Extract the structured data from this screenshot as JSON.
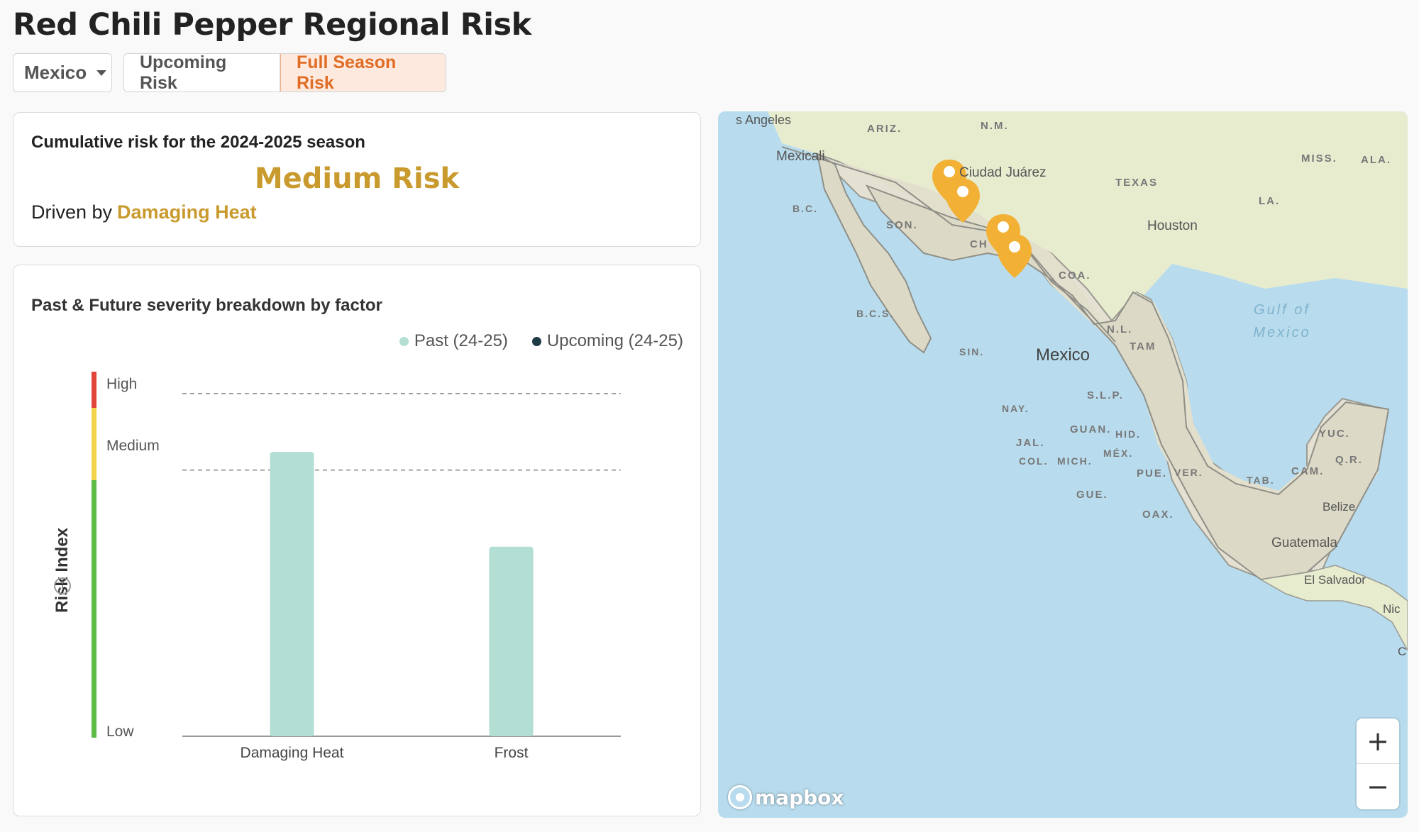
{
  "page": {
    "title": "Red Chili Pepper Regional Risk"
  },
  "controls": {
    "region": "Mexico",
    "tabs": [
      "Upcoming Risk",
      "Full Season Risk"
    ],
    "active_tab": "Full Season Risk"
  },
  "summary": {
    "heading": "Cumulative risk for the 2024-2025 season",
    "level": "Medium Risk",
    "driven_prefix": "Driven by",
    "driven_factor": "Damaging Heat"
  },
  "chart_card": {
    "title": "Past & Future severity breakdown by factor",
    "legend": [
      {
        "label": "Past (24-25)",
        "color": "#b2ded3"
      },
      {
        "label": "Upcoming (24-25)",
        "color": "#1d3b45"
      }
    ],
    "y_axis_title": "Risk Index",
    "scale_labels": [
      "High",
      "Medium",
      "Low"
    ]
  },
  "chart_data": {
    "type": "bar",
    "categories": [
      "Damaging Heat",
      "Frost"
    ],
    "series": [
      {
        "name": "Past (24-25)",
        "values": [
          0.78,
          0.52
        ]
      },
      {
        "name": "Upcoming (24-25)",
        "values": [
          null,
          null
        ]
      }
    ],
    "ylabel": "Risk Index",
    "ylim": [
      0,
      1
    ],
    "thresholds": [
      {
        "label": "Medium",
        "value": 0.73
      },
      {
        "label": "High",
        "value": 0.94
      }
    ],
    "colors": {
      "past": "#b2ded3",
      "high": "#e0443a",
      "medium": "#f2d44c",
      "low": "#5dbb46"
    }
  },
  "map": {
    "country_label": "Mexico",
    "labels": [
      "ARIZ.",
      "N.M.",
      "Mexicali",
      "Ciudad Juárez",
      "TEXAS",
      "MISS.",
      "ALA.",
      "LA.",
      "Houston",
      "B.C.",
      "SON.",
      "CH",
      "COA.",
      "B.C.S.",
      "N.L.",
      "TAM",
      "SIN.",
      "S.L.P.",
      "NAY.",
      "GUAN.",
      "HID.",
      "JAL.",
      "MÉX.",
      "COL.",
      "MICH.",
      "PUE.",
      "VER.",
      "GUE.",
      "OAX.",
      "TAB.",
      "CAM.",
      "YUC.",
      "Q.R.",
      "Belize",
      "Guatemala",
      "El Salvador",
      "Nic",
      "C",
      "Gulf of",
      "Mexico",
      "s Angeles"
    ],
    "attribution": "mapbox",
    "zoom_in": "+",
    "zoom_out": "−",
    "marker_color": "#f2b134"
  }
}
